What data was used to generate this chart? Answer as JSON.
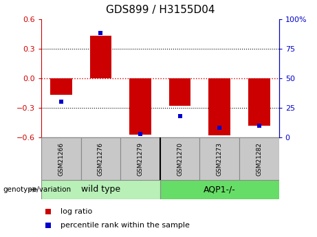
{
  "title": "GDS899 / H3155D04",
  "samples": [
    "GSM21266",
    "GSM21276",
    "GSM21279",
    "GSM21270",
    "GSM21273",
    "GSM21282"
  ],
  "log_ratios": [
    -0.17,
    0.43,
    -0.57,
    -0.28,
    -0.58,
    -0.48
  ],
  "percentile_ranks": [
    30,
    88,
    3,
    18,
    8,
    10
  ],
  "groups": [
    {
      "label": "wild type",
      "indices": [
        0,
        1,
        2
      ],
      "color": "#b8f0b8"
    },
    {
      "label": "AQP1-/-",
      "indices": [
        3,
        4,
        5
      ],
      "color": "#66dd66"
    }
  ],
  "ylim_left": [
    -0.6,
    0.6
  ],
  "ylim_right": [
    0,
    100
  ],
  "yticks_left": [
    -0.6,
    -0.3,
    0,
    0.3,
    0.6
  ],
  "yticks_right": [
    0,
    25,
    50,
    75,
    100
  ],
  "bar_color": "#cc0000",
  "dot_color": "#0000cc",
  "zero_line_color": "#cc0000",
  "grid_color": "#000000",
  "bar_width": 0.55,
  "bg_color": "#ffffff",
  "sample_box_color": "#c8c8c8",
  "genotype_label": "genotype/variation",
  "legend_log_ratio": "log ratio",
  "legend_percentile": "percentile rank within the sample"
}
